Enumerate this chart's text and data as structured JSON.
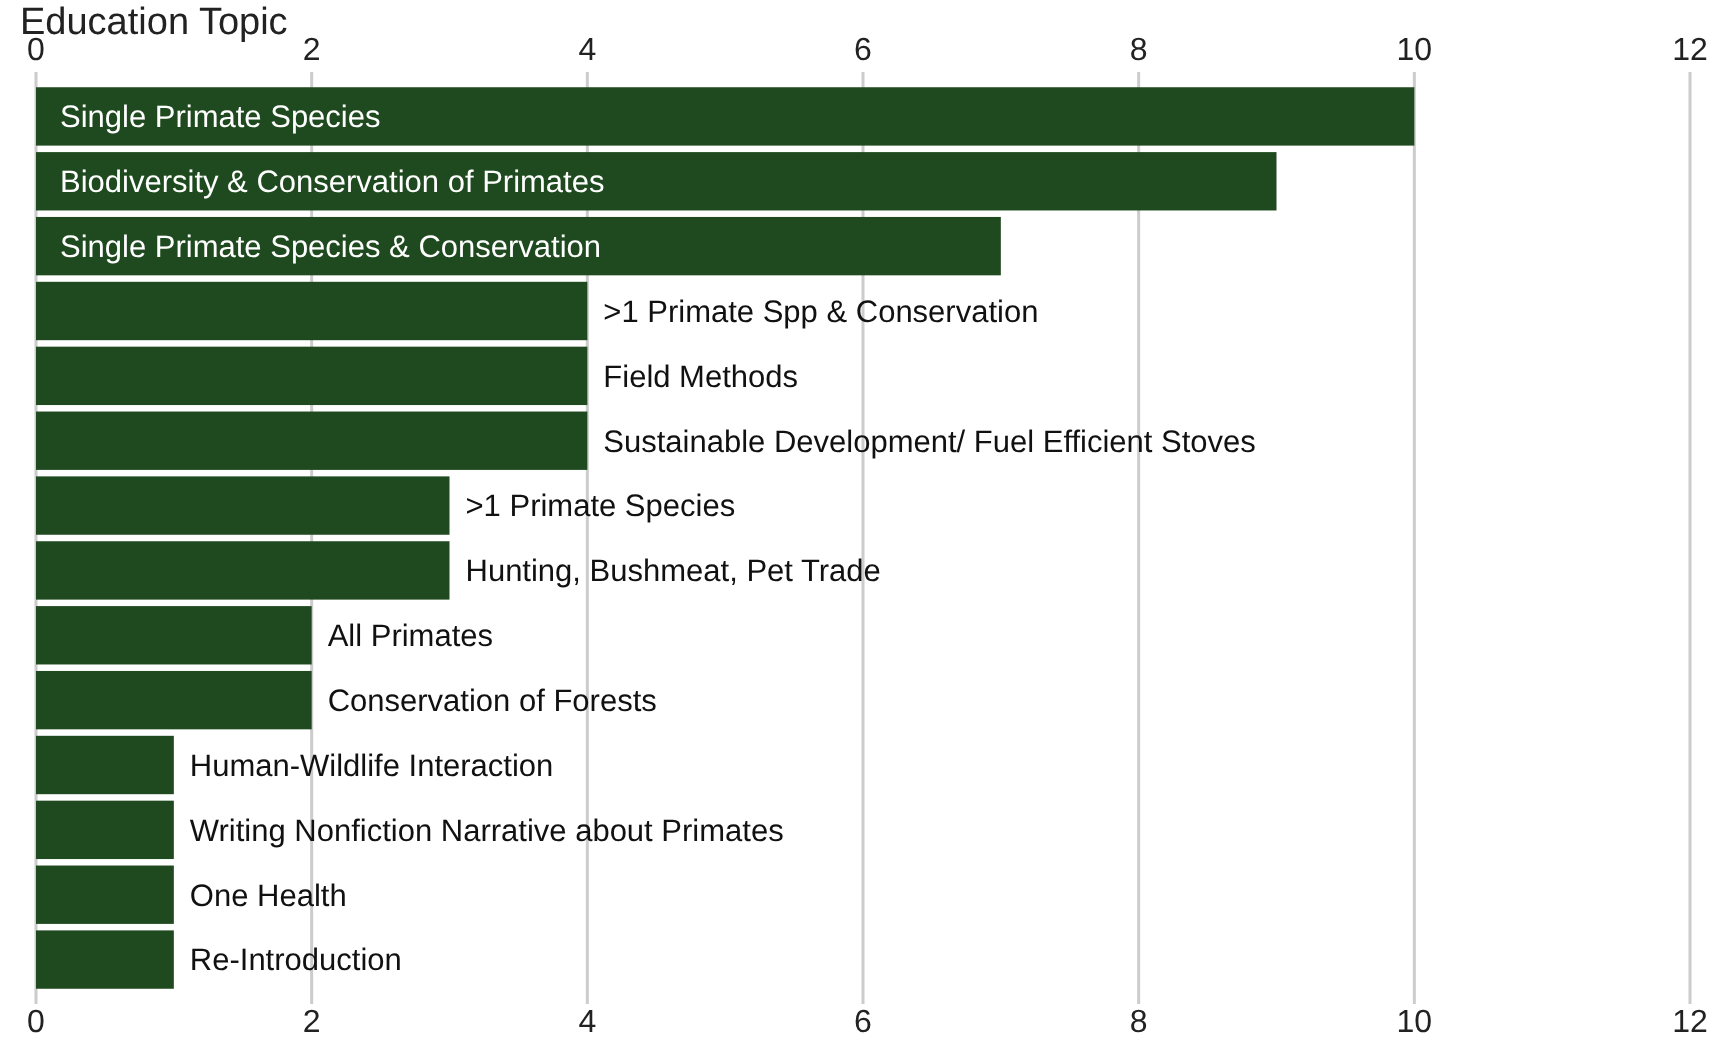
{
  "chart_data": {
    "type": "bar",
    "orientation": "horizontal",
    "title": "Education Topic",
    "categories": [
      "Single Primate Species",
      "Biodiversity & Conservation of Primates",
      "Single Primate Species & Conservation",
      ">1 Primate Spp & Conservation",
      "Field Methods",
      "Sustainable Development/ Fuel Efficient Stoves",
      ">1 Primate Species",
      "Hunting, Bushmeat, Pet Trade",
      "All Primates",
      "Conservation of Forests",
      "Human-Wildlife Interaction",
      "Writing Nonfiction Narrative about Primates",
      "One Health",
      "Re-Introduction"
    ],
    "values": [
      10,
      9,
      7,
      4,
      4,
      4,
      3,
      3,
      2,
      2,
      1,
      1,
      1,
      1
    ],
    "color": "#1f4a1f",
    "xlim": [
      0,
      12
    ],
    "xticks": [
      0,
      2,
      4,
      6,
      8,
      10,
      12
    ],
    "x2lim": [
      0,
      12
    ],
    "x2ticks": [
      0,
      2,
      4,
      6,
      8,
      10,
      12
    ],
    "grid": "x"
  }
}
